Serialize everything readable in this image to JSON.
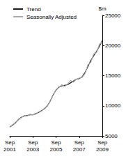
{
  "chart_data": {
    "type": "line",
    "y_label": "$m",
    "categories": [
      "Sep\n2001",
      null,
      null,
      null,
      null,
      null,
      null,
      null,
      "Sep\n2003",
      null,
      null,
      null,
      null,
      null,
      null,
      null,
      "Sep\n2005",
      null,
      null,
      null,
      null,
      null,
      null,
      null,
      "Sep\n2007",
      null,
      null,
      null,
      null,
      null,
      null,
      null,
      "Sep\n2009"
    ],
    "series": [
      {
        "name": "Trend",
        "color": "#1a1a1a",
        "line_style": "solid",
        "values": [
          6500,
          6800,
          7200,
          7700,
          8100,
          8300,
          8400,
          8500,
          8500,
          8700,
          8900,
          9200,
          9500,
          10000,
          10800,
          11800,
          12600,
          13100,
          13300,
          13400,
          13500,
          13800,
          14100,
          14400,
          14500,
          14800,
          15500,
          16500,
          17500,
          18300,
          19000,
          19900,
          20800
        ]
      },
      {
        "name": "Seasonally Adjusted",
        "color": "#aaaaaa",
        "line_style": "solid",
        "values": [
          6400,
          6900,
          7100,
          7800,
          8000,
          8400,
          8300,
          8600,
          8500,
          8600,
          9000,
          9100,
          9600,
          9900,
          10900,
          11700,
          12700,
          13000,
          13500,
          13200,
          13600,
          14200,
          13900,
          14400,
          14600,
          14700,
          15300,
          16800,
          17200,
          18600,
          18800,
          20200,
          20600
        ]
      }
    ],
    "ylim": [
      5000,
      25000
    ],
    "yticks": [
      5000,
      10000,
      15000,
      20000,
      25000
    ],
    "legend": "top-left",
    "grid": false
  }
}
